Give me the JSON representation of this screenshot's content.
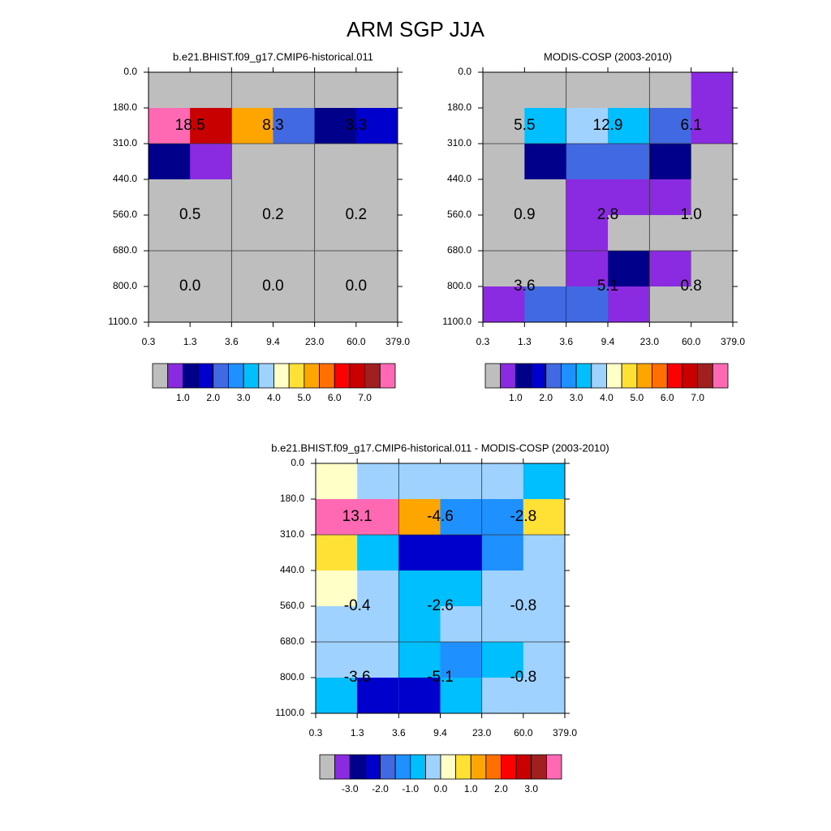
{
  "title": "ARM SGP JJA",
  "chart_data": [
    {
      "type": "heatmap",
      "title": "b.e21.BHIST.f09_g17.CMIP6-historical.011",
      "x_edges": [
        {
          "value": 0.3,
          "label": "0.3"
        },
        {
          "value": 1.3,
          "label": "1.3"
        },
        {
          "value": 3.6,
          "label": "3.6"
        },
        {
          "value": 9.4,
          "label": "9.4"
        },
        {
          "value": 23,
          "label": "23.0"
        },
        {
          "value": 60,
          "label": "60.0"
        },
        {
          "value": 379,
          "label": "379.0"
        }
      ],
      "y_edges": [
        {
          "value": 0,
          "label": "0.0"
        },
        {
          "value": 180,
          "label": "180.0"
        },
        {
          "value": 310,
          "label": "310.0"
        },
        {
          "value": 440,
          "label": "440.0"
        },
        {
          "value": 560,
          "label": "560.0"
        },
        {
          "value": 680,
          "label": "680.0"
        },
        {
          "value": 800,
          "label": "800.0"
        },
        {
          "value": 1100,
          "label": "1100.0"
        }
      ],
      "values": [
        [
          0.1,
          0.1,
          0.1,
          0.1,
          0.1,
          0.1
        ],
        [
          8.0,
          6.75,
          5.25,
          2.25,
          1.25,
          1.75
        ],
        [
          1.25,
          0.75,
          0.1,
          0.1,
          0.1,
          0.1
        ],
        [
          0.1,
          0.1,
          0.1,
          0.1,
          0.1,
          0.1
        ],
        [
          0.1,
          0.1,
          0.1,
          0.1,
          0.1,
          0.1
        ],
        [
          0.1,
          0.1,
          0.1,
          0.1,
          0.1,
          0.1
        ],
        [
          0.1,
          0.1,
          0.1,
          0.1,
          0.1,
          0.1
        ]
      ],
      "annotations": {
        "values": [
          [
            18.5,
            8.3,
            3.3
          ],
          [
            0.5,
            0.2,
            0.2
          ],
          [
            0,
            0,
            0
          ]
        ],
        "value_labels": [
          [
            "18.5",
            "8.3",
            "3.3"
          ],
          [
            "0.5",
            "0.2",
            "0.2"
          ],
          [
            "0.0",
            "0.0",
            "0.0"
          ]
        ]
      },
      "colorbar": {
        "levels": [
          0.5,
          1,
          1.5,
          2,
          2.5,
          3,
          3.5,
          4,
          4.5,
          5,
          5.5,
          6,
          6.5,
          7,
          7.5
        ],
        "colors": [
          "#bebebe",
          "#8a2be2",
          "#00008b",
          "#0000cd",
          "#4169e1",
          "#1e90ff",
          "#00bfff",
          "#a0d2ff",
          "#ffffc8",
          "#ffe135",
          "#ffa500",
          "#ff7000",
          "#ff0000",
          "#c80000",
          "#a02020",
          "#ff69b4"
        ],
        "ticks": [
          {
            "value": 1,
            "label": "1.0"
          },
          {
            "value": 2,
            "label": "2.0"
          },
          {
            "value": 3,
            "label": "3.0"
          },
          {
            "value": 4,
            "label": "4.0"
          },
          {
            "value": 5,
            "label": "5.0"
          },
          {
            "value": 6,
            "label": "6.0"
          },
          {
            "value": 7,
            "label": "7.0"
          }
        ]
      }
    },
    {
      "type": "heatmap",
      "title": "MODIS-COSP (2003-2010)",
      "x_edges": [
        {
          "value": 0.3,
          "label": "0.3"
        },
        {
          "value": 1.3,
          "label": "1.3"
        },
        {
          "value": 3.6,
          "label": "3.6"
        },
        {
          "value": 9.4,
          "label": "9.4"
        },
        {
          "value": 23,
          "label": "23.0"
        },
        {
          "value": 60,
          "label": "60.0"
        },
        {
          "value": 379,
          "label": "379.0"
        }
      ],
      "y_edges": [
        {
          "value": 0,
          "label": "0.0"
        },
        {
          "value": 180,
          "label": "180.0"
        },
        {
          "value": 310,
          "label": "310.0"
        },
        {
          "value": 440,
          "label": "440.0"
        },
        {
          "value": 560,
          "label": "560.0"
        },
        {
          "value": 680,
          "label": "680.0"
        },
        {
          "value": 800,
          "label": "800.0"
        },
        {
          "value": 1100,
          "label": "1100.0"
        }
      ],
      "values": [
        [
          0.1,
          0.1,
          0.1,
          0.1,
          0.1,
          0.75
        ],
        [
          0.1,
          3.25,
          3.75,
          3.25,
          2.25,
          0.75
        ],
        [
          0.1,
          1.25,
          2.25,
          2.25,
          1.25,
          0.1
        ],
        [
          0.1,
          0.1,
          0.75,
          0.75,
          0.75,
          0.1
        ],
        [
          0.1,
          0.1,
          0.75,
          0.1,
          0.1,
          0.1
        ],
        [
          0.1,
          0.1,
          0.75,
          1.25,
          0.75,
          0.1
        ],
        [
          0.75,
          2.25,
          2.25,
          0.75,
          0.1,
          0.1
        ]
      ],
      "annotations": {
        "values": [
          [
            5.5,
            12.9,
            6.1
          ],
          [
            0.9,
            2.8,
            1
          ],
          [
            3.6,
            5.1,
            0.8
          ]
        ],
        "value_labels": [
          [
            "5.5",
            "12.9",
            "6.1"
          ],
          [
            "0.9",
            "2.8",
            "1.0"
          ],
          [
            "3.6",
            "5.1",
            "0.8"
          ]
        ]
      },
      "colorbar": {
        "levels": [
          0.5,
          1,
          1.5,
          2,
          2.5,
          3,
          3.5,
          4,
          4.5,
          5,
          5.5,
          6,
          6.5,
          7,
          7.5
        ],
        "colors": [
          "#bebebe",
          "#8a2be2",
          "#00008b",
          "#0000cd",
          "#4169e1",
          "#1e90ff",
          "#00bfff",
          "#a0d2ff",
          "#ffffc8",
          "#ffe135",
          "#ffa500",
          "#ff7000",
          "#ff0000",
          "#c80000",
          "#a02020",
          "#ff69b4"
        ],
        "ticks": [
          {
            "value": 1,
            "label": "1.0"
          },
          {
            "value": 2,
            "label": "2.0"
          },
          {
            "value": 3,
            "label": "3.0"
          },
          {
            "value": 4,
            "label": "4.0"
          },
          {
            "value": 5,
            "label": "5.0"
          },
          {
            "value": 6,
            "label": "6.0"
          },
          {
            "value": 7,
            "label": "7.0"
          }
        ]
      }
    },
    {
      "type": "heatmap",
      "title": "b.e21.BHIST.f09_g17.CMIP6-historical.011 - MODIS-COSP (2003-2010)",
      "x_edges": [
        {
          "value": 0.3,
          "label": "0.3"
        },
        {
          "value": 1.3,
          "label": "1.3"
        },
        {
          "value": 3.6,
          "label": "3.6"
        },
        {
          "value": 9.4,
          "label": "9.4"
        },
        {
          "value": 23,
          "label": "23.0"
        },
        {
          "value": 60,
          "label": "60.0"
        },
        {
          "value": 379,
          "label": "379.0"
        }
      ],
      "y_edges": [
        {
          "value": 0,
          "label": "0.0"
        },
        {
          "value": 180,
          "label": "180.0"
        },
        {
          "value": 310,
          "label": "310.0"
        },
        {
          "value": 440,
          "label": "440.0"
        },
        {
          "value": 560,
          "label": "560.0"
        },
        {
          "value": 680,
          "label": "680.0"
        },
        {
          "value": 800,
          "label": "800.0"
        },
        {
          "value": 1100,
          "label": "1100.0"
        }
      ],
      "values": [
        [
          0.25,
          -0.25,
          -0.25,
          -0.25,
          -0.25,
          -0.75
        ],
        [
          3.75,
          3.75,
          1.25,
          -1.25,
          -1.25,
          0.75
        ],
        [
          0.75,
          -0.75,
          -2.25,
          -2.25,
          -1.25,
          -0.25
        ],
        [
          0.25,
          -0.25,
          -0.75,
          -0.75,
          -0.25,
          -0.25
        ],
        [
          -0.25,
          -0.25,
          -0.75,
          -0.25,
          -0.25,
          -0.25
        ],
        [
          -0.25,
          -0.25,
          -0.75,
          -1.25,
          -0.75,
          -0.25
        ],
        [
          -0.75,
          -2.25,
          -2.25,
          -0.75,
          -0.25,
          -0.25
        ]
      ],
      "annotations": {
        "values": [
          [
            13.1,
            -4.6,
            -2.8
          ],
          [
            -0.4,
            -2.6,
            -0.8
          ],
          [
            -3.6,
            -5.1,
            -0.8
          ]
        ],
        "value_labels": [
          [
            "13.1",
            "-4.6",
            "-2.8"
          ],
          [
            "-0.4",
            "-2.6",
            "-0.8"
          ],
          [
            "-3.6",
            "-5.1",
            "-0.8"
          ]
        ]
      },
      "colorbar": {
        "levels": [
          -3.5,
          -3,
          -2.5,
          -2,
          -1.5,
          -1,
          -0.5,
          0,
          0.5,
          1,
          1.5,
          2,
          2.5,
          3,
          3.5
        ],
        "colors": [
          "#bebebe",
          "#8a2be2",
          "#00008b",
          "#0000cd",
          "#4169e1",
          "#1e90ff",
          "#00bfff",
          "#a0d2ff",
          "#ffffc8",
          "#ffe135",
          "#ffa500",
          "#ff7000",
          "#ff0000",
          "#c80000",
          "#a02020",
          "#ff69b4"
        ],
        "ticks": [
          {
            "value": -3,
            "label": "-3.0"
          },
          {
            "value": -2,
            "label": "-2.0"
          },
          {
            "value": -1,
            "label": "-1.0"
          },
          {
            "value": 0,
            "label": "0.0"
          },
          {
            "value": 1,
            "label": "1.0"
          },
          {
            "value": 2,
            "label": "2.0"
          },
          {
            "value": 3,
            "label": "3.0"
          }
        ]
      }
    }
  ]
}
